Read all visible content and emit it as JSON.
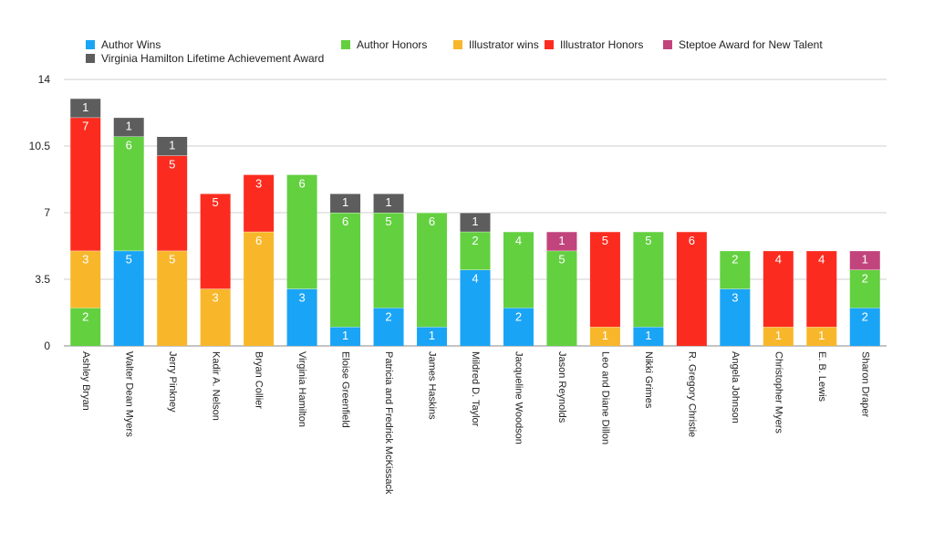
{
  "chart_data": {
    "type": "bar",
    "stacked": true,
    "categories": [
      "Ashley Bryan",
      "Walter Dean Myers",
      "Jerry Pinkney",
      "Kadir A. Nelson",
      "Bryan Collier",
      "Virginia Hamilton",
      "Eloise Greenfield",
      "Patricia and Fredrick McKissack",
      "James Haskins",
      "Mildred D. Taylor",
      "Jacqueline Woodson",
      "Jason Reynolds",
      "Leo and Diane Dillon",
      "Nikki Grimes",
      "R. Gregory Christie",
      "Angela Johnson",
      "Christopher Myers",
      "E. B. Lewis",
      "Sharon Draper"
    ],
    "series": [
      {
        "name": "Author Wins",
        "color": "#1aa4f6",
        "values": [
          0,
          5,
          0,
          0,
          0,
          3,
          1,
          2,
          1,
          4,
          2,
          0,
          0,
          1,
          0,
          3,
          0,
          0,
          2
        ]
      },
      {
        "name": "Author Honors",
        "color": "#63d040",
        "values": [
          2,
          6,
          0,
          0,
          0,
          6,
          6,
          5,
          6,
          2,
          4,
          5,
          0,
          5,
          0,
          2,
          0,
          0,
          2
        ]
      },
      {
        "name": "Illustrator wins",
        "color": "#f8b72b",
        "values": [
          3,
          0,
          5,
          3,
          6,
          0,
          0,
          0,
          0,
          0,
          0,
          0,
          1,
          0,
          0,
          0,
          1,
          1,
          0
        ]
      },
      {
        "name": "Illustrator Honors",
        "color": "#fb2c1f",
        "values": [
          7,
          0,
          5,
          5,
          3,
          0,
          0,
          0,
          0,
          0,
          0,
          0,
          5,
          0,
          6,
          0,
          4,
          4,
          0
        ]
      },
      {
        "name": "Steptoe Award for New Talent",
        "color": "#c1457c",
        "values": [
          0,
          0,
          0,
          0,
          0,
          0,
          0,
          0,
          0,
          0,
          0,
          1,
          0,
          0,
          0,
          0,
          0,
          0,
          1
        ]
      },
      {
        "name": "Virginia Hamilton Lifetime Achievement Award",
        "color": "#5d5d5d",
        "values": [
          1,
          1,
          1,
          0,
          0,
          0,
          1,
          1,
          0,
          1,
          0,
          0,
          0,
          0,
          0,
          0,
          0,
          0,
          0
        ]
      }
    ],
    "ylim": [
      0,
      14
    ],
    "yticks": [
      "0",
      "3.5",
      "7",
      "10.5",
      "14"
    ],
    "grid": true,
    "legend_position": "top-left",
    "title": "",
    "xlabel": "",
    "ylabel": ""
  }
}
